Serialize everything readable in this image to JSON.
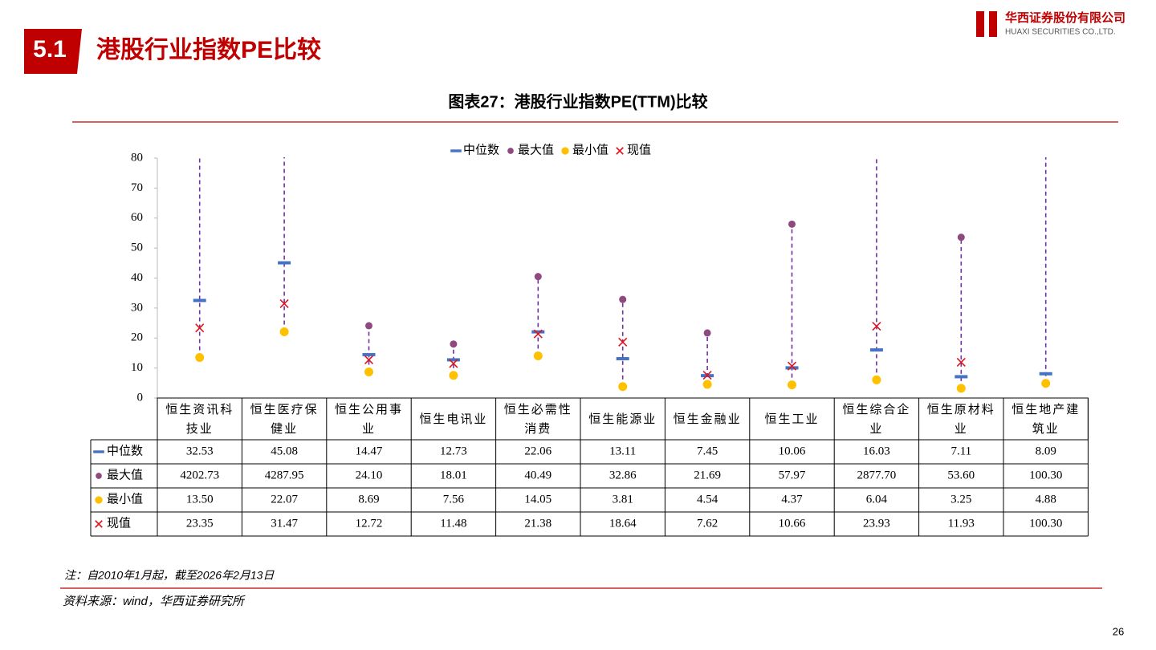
{
  "slide": {
    "section": "5.1",
    "heading": "港股行业指数PE比较",
    "logo_cn": "华西证券股份有限公司",
    "logo_en": "HUAXI SECURITIES CO.,LTD.",
    "note": "注：自2010年1月起，截至2026年2月13日",
    "source": "资料来源：wind，华西证券研究所",
    "page": "26"
  },
  "chart_data": {
    "type": "range-dot",
    "title": "图表27：港股行业指数PE(TTM)比较",
    "categories": [
      "恒生资讯科技业",
      "恒生医疗保健业",
      "恒生公用事业",
      "恒生电讯业",
      "恒生必需性消费",
      "恒生能源业",
      "恒生金融业",
      "恒生工业",
      "恒生综合企业",
      "恒生原材料业",
      "恒生地产建筑业"
    ],
    "series": [
      {
        "name": "中位数",
        "marker": "dash",
        "color": "#4472c4",
        "values": [
          32.53,
          45.08,
          14.47,
          12.73,
          22.06,
          13.11,
          7.45,
          10.06,
          16.03,
          7.11,
          8.09
        ]
      },
      {
        "name": "最大值",
        "marker": "circle",
        "color": "#8e4a7e",
        "values": [
          4202.73,
          4287.95,
          24.1,
          18.01,
          40.49,
          32.86,
          21.69,
          57.97,
          2877.7,
          53.6,
          100.3
        ],
        "value_labels": [
          "4202.73",
          "4287.95",
          "24.10",
          "18.01",
          "40.49",
          "32.86",
          "21.69",
          "57.97",
          "2877.70",
          "53.60",
          "100.30"
        ]
      },
      {
        "name": "最小值",
        "marker": "dot",
        "color": "#ffc000",
        "values": [
          13.5,
          22.07,
          8.69,
          7.56,
          14.05,
          3.81,
          4.54,
          4.37,
          6.04,
          3.25,
          4.88
        ],
        "value_labels": [
          "13.50",
          "22.07",
          "8.69",
          "7.56",
          "14.05",
          "3.81",
          "4.54",
          "4.37",
          "6.04",
          "3.25",
          "4.88"
        ]
      },
      {
        "name": "现值",
        "marker": "x",
        "color": "#e0141e",
        "values": [
          23.35,
          31.47,
          12.72,
          11.48,
          21.38,
          18.64,
          7.62,
          10.66,
          23.93,
          11.93,
          100.3
        ],
        "value_labels": [
          "23.35",
          "31.47",
          "12.72",
          "11.48",
          "21.38",
          "18.64",
          "7.62",
          "10.66",
          "23.93",
          "11.93",
          "100.30"
        ]
      }
    ],
    "range_line_color": "#7030a0",
    "ylim": [
      0,
      80
    ],
    "yticks": [
      0,
      10,
      20,
      30,
      40,
      50,
      60,
      70,
      80
    ],
    "legend": "top"
  }
}
